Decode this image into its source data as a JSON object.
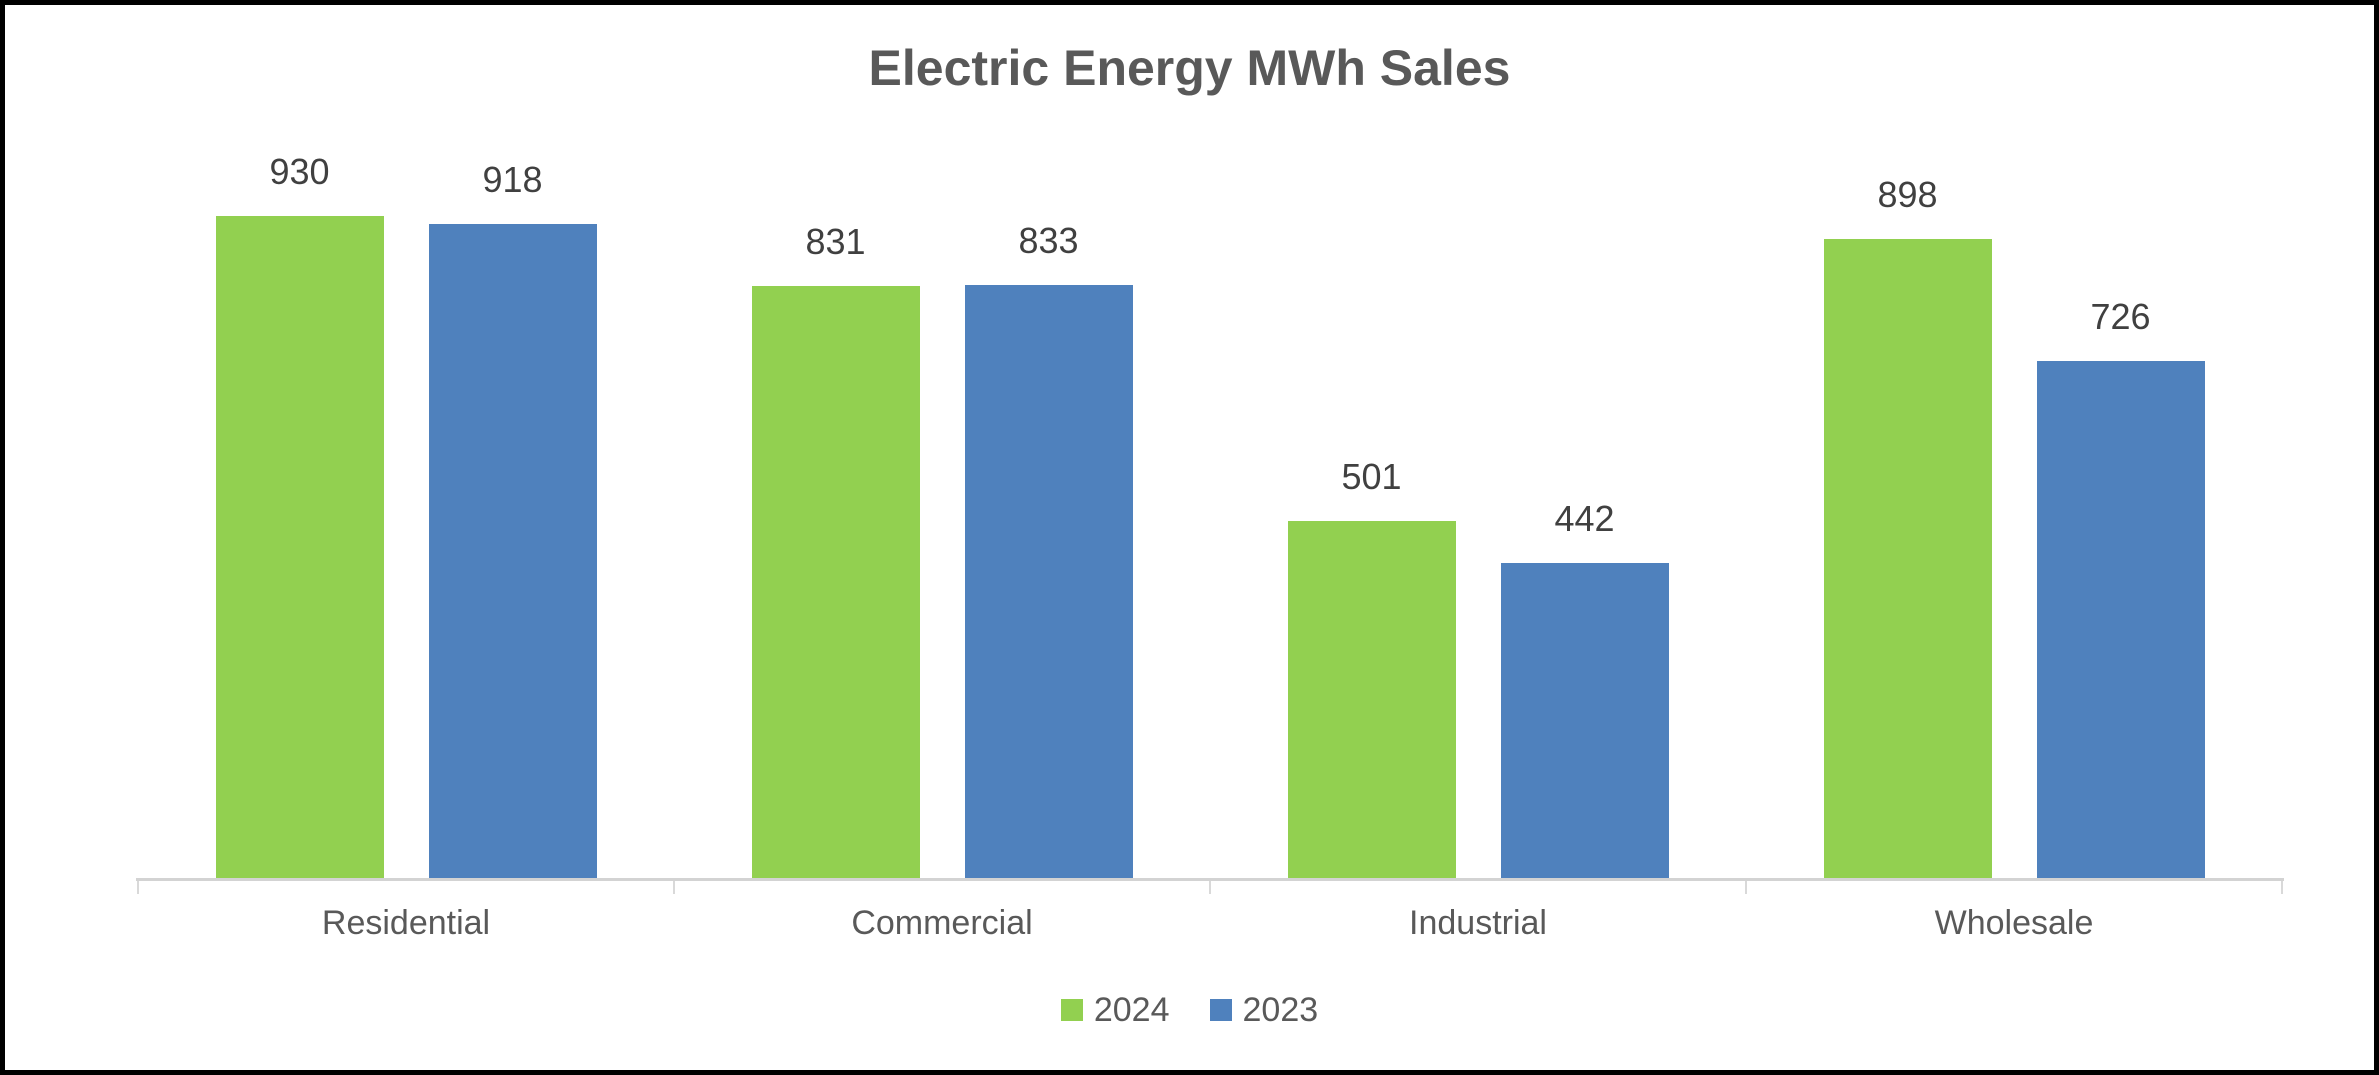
{
  "window": {
    "background": "#ffffff",
    "border_color": "#000000"
  },
  "chart_data": {
    "type": "bar",
    "title": "Electric Energy MWh Sales",
    "categories": [
      "Residential",
      "Commercial",
      "Industrial",
      "Wholesale"
    ],
    "series": [
      {
        "name": "2024",
        "color": "#92D050",
        "values": [
          930,
          831,
          501,
          898
        ]
      },
      {
        "name": "2023",
        "color": "#4F81BD",
        "values": [
          918,
          833,
          442,
          726
        ]
      }
    ],
    "data_labels": {
      "2024": [
        "930",
        "831",
        "501",
        "898"
      ],
      "2023": [
        "918",
        "833",
        "442",
        "726"
      ]
    },
    "xlabel": "",
    "ylabel": "",
    "ylim": [
      0,
      1000
    ],
    "grid": false,
    "y_axis_shown": false,
    "legend_position": "bottom",
    "legend_entries": [
      "2024",
      "2023"
    ]
  },
  "colors": {
    "series_2024": "#92D050",
    "series_2023": "#4F81BD",
    "title_text": "#595959",
    "data_label_text": "#404040",
    "category_label_text": "#595959",
    "legend_text": "#595959",
    "axis_line": "#D3D3D3",
    "tick_mark": "#D9D9D9"
  }
}
